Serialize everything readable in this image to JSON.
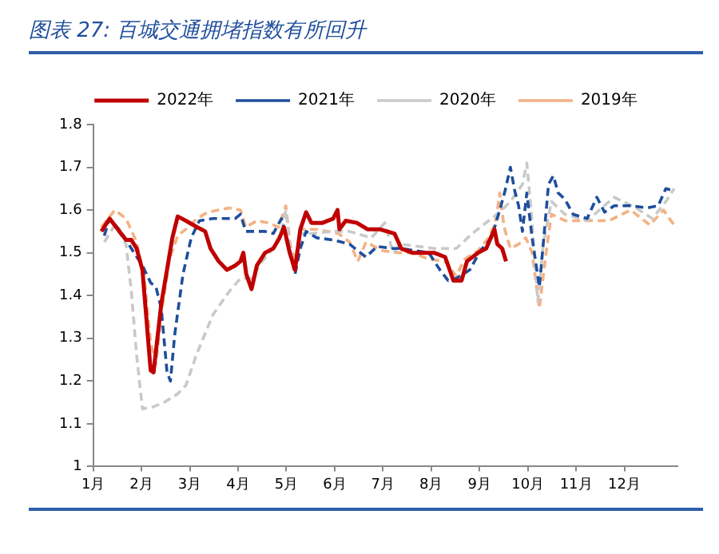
{
  "chart_data": {
    "type": "line",
    "title": "图表 27: 百城交通拥堵指数有所回升",
    "legend": "top",
    "grid": false,
    "marker": "none",
    "xlim": [
      1,
      13.1
    ],
    "xticks": [
      {
        "value": 1,
        "label": "1月"
      },
      {
        "value": 2,
        "label": "2月"
      },
      {
        "value": 3,
        "label": "3月"
      },
      {
        "value": 4,
        "label": "4月"
      },
      {
        "value": 5,
        "label": "5月"
      },
      {
        "value": 6,
        "label": "6月"
      },
      {
        "value": 7,
        "label": "7月"
      },
      {
        "value": 8,
        "label": "8月"
      },
      {
        "value": 9,
        "label": "9月"
      },
      {
        "value": 10,
        "label": "10月"
      },
      {
        "value": 11,
        "label": "11月"
      },
      {
        "value": 12,
        "label": "12月"
      }
    ],
    "ylim": [
      1,
      1.8
    ],
    "yticks": [
      1,
      1.1,
      1.2,
      1.3,
      1.4,
      1.5,
      1.6,
      1.7,
      1.8
    ],
    "series": [
      {
        "name": "2022年",
        "color": "#c00000",
        "line_style": "solid",
        "x": [
          1.17,
          1.34,
          1.51,
          1.68,
          1.79,
          1.9,
          2.02,
          2.19,
          2.25,
          2.41,
          2.64,
          2.75,
          2.92,
          3.15,
          3.32,
          3.43,
          3.6,
          3.77,
          3.94,
          4.05,
          4.11,
          4.17,
          4.28,
          4.39,
          4.56,
          4.73,
          4.86,
          4.95,
          5.07,
          5.18,
          5.29,
          5.41,
          5.52,
          5.75,
          5.97,
          6.06,
          6.1,
          6.23,
          6.46,
          6.68,
          6.93,
          7.24,
          7.38,
          7.61,
          8.06,
          8.29,
          8.46,
          8.63,
          8.74,
          8.97,
          9.14,
          9.31,
          9.37,
          9.47,
          9.55
        ],
        "values": [
          1.55,
          1.58,
          1.555,
          1.53,
          1.53,
          1.51,
          1.46,
          1.225,
          1.22,
          1.38,
          1.535,
          1.585,
          1.575,
          1.56,
          1.55,
          1.51,
          1.48,
          1.46,
          1.47,
          1.48,
          1.5,
          1.45,
          1.415,
          1.47,
          1.5,
          1.51,
          1.535,
          1.56,
          1.5,
          1.46,
          1.555,
          1.595,
          1.57,
          1.57,
          1.58,
          1.6,
          1.555,
          1.575,
          1.57,
          1.555,
          1.555,
          1.545,
          1.51,
          1.5,
          1.5,
          1.49,
          1.435,
          1.435,
          1.48,
          1.5,
          1.51,
          1.555,
          1.52,
          1.51,
          1.48
        ]
      },
      {
        "name": "2021年",
        "color": "#1f4e9c",
        "line_style": "dashed",
        "x": [
          1.23,
          1.34,
          1.57,
          1.79,
          2.02,
          2.19,
          2.3,
          2.41,
          2.53,
          2.6,
          2.69,
          2.86,
          3.03,
          3.2,
          3.48,
          3.71,
          3.94,
          4.05,
          4.16,
          4.33,
          4.56,
          4.73,
          4.9,
          5.01,
          5.18,
          5.29,
          5.41,
          5.63,
          5.97,
          6.31,
          6.65,
          6.88,
          7.21,
          7.38,
          7.95,
          8.18,
          8.35,
          8.52,
          8.8,
          9.02,
          9.25,
          9.42,
          9.53,
          9.64,
          9.73,
          9.81,
          9.89,
          9.98,
          10.09,
          10.24,
          10.32,
          10.43,
          10.53,
          10.63,
          10.77,
          10.94,
          11.23,
          11.43,
          11.59,
          11.79,
          12.13,
          12.47,
          12.7,
          12.86,
          13.03
        ],
        "values": [
          1.54,
          1.58,
          1.55,
          1.51,
          1.47,
          1.43,
          1.42,
          1.37,
          1.22,
          1.2,
          1.31,
          1.45,
          1.535,
          1.575,
          1.58,
          1.58,
          1.58,
          1.59,
          1.55,
          1.55,
          1.55,
          1.545,
          1.58,
          1.535,
          1.45,
          1.51,
          1.55,
          1.535,
          1.53,
          1.52,
          1.49,
          1.515,
          1.51,
          1.51,
          1.5,
          1.46,
          1.435,
          1.44,
          1.46,
          1.505,
          1.535,
          1.6,
          1.645,
          1.7,
          1.645,
          1.61,
          1.55,
          1.64,
          1.535,
          1.42,
          1.52,
          1.66,
          1.68,
          1.64,
          1.625,
          1.59,
          1.58,
          1.63,
          1.595,
          1.61,
          1.61,
          1.605,
          1.61,
          1.65,
          1.645
        ]
      },
      {
        "name": "2020年",
        "color": "#c9c9c9",
        "line_style": "dashed",
        "x": [
          1.23,
          1.45,
          1.68,
          1.79,
          1.9,
          2.02,
          2.25,
          2.47,
          2.75,
          2.92,
          3.15,
          3.48,
          3.82,
          4.05,
          4.28,
          4.5,
          4.73,
          4.9,
          4.99,
          5.08,
          5.18,
          5.29,
          5.52,
          5.97,
          6.31,
          6.76,
          7.04,
          7.21,
          7.38,
          8.06,
          8.52,
          8.85,
          9.19,
          9.42,
          9.64,
          9.89,
          9.98,
          10.07,
          10.21,
          10.32,
          10.49,
          10.77,
          11.23,
          11.79,
          12.24,
          12.58,
          12.86,
          13.03
        ],
        "values": [
          1.525,
          1.565,
          1.52,
          1.41,
          1.26,
          1.135,
          1.14,
          1.15,
          1.17,
          1.19,
          1.265,
          1.355,
          1.41,
          1.44,
          1.44,
          1.48,
          1.51,
          1.55,
          1.6,
          1.51,
          1.46,
          1.545,
          1.545,
          1.55,
          1.55,
          1.535,
          1.57,
          1.5,
          1.52,
          1.51,
          1.51,
          1.545,
          1.575,
          1.595,
          1.62,
          1.66,
          1.71,
          1.6,
          1.385,
          1.52,
          1.62,
          1.59,
          1.575,
          1.63,
          1.605,
          1.58,
          1.62,
          1.65
        ]
      },
      {
        "name": "2019年",
        "color": "#f4b183",
        "line_style": "dashed",
        "x": [
          1.17,
          1.45,
          1.68,
          1.9,
          2.07,
          2.19,
          2.3,
          2.41,
          2.58,
          2.75,
          2.92,
          3.15,
          3.37,
          3.6,
          3.82,
          4.05,
          4.16,
          4.39,
          4.62,
          4.84,
          4.99,
          5.08,
          5.18,
          5.29,
          5.63,
          6.08,
          6.31,
          6.48,
          6.65,
          6.99,
          7.33,
          7.61,
          7.95,
          8.29,
          8.52,
          8.69,
          8.97,
          9.19,
          9.33,
          9.42,
          9.51,
          9.64,
          9.81,
          9.96,
          10.09,
          10.24,
          10.38,
          10.49,
          10.77,
          11.23,
          11.68,
          12.13,
          12.53,
          12.81,
          13.03
        ],
        "values": [
          1.56,
          1.6,
          1.58,
          1.525,
          1.43,
          1.29,
          1.24,
          1.355,
          1.485,
          1.54,
          1.555,
          1.58,
          1.595,
          1.6,
          1.605,
          1.6,
          1.56,
          1.575,
          1.57,
          1.56,
          1.61,
          1.52,
          1.48,
          1.555,
          1.555,
          1.545,
          1.525,
          1.48,
          1.525,
          1.505,
          1.5,
          1.5,
          1.485,
          1.48,
          1.445,
          1.485,
          1.505,
          1.535,
          1.57,
          1.64,
          1.56,
          1.51,
          1.52,
          1.535,
          1.5,
          1.37,
          1.5,
          1.59,
          1.575,
          1.575,
          1.575,
          1.6,
          1.565,
          1.6,
          1.565
        ]
      }
    ]
  }
}
